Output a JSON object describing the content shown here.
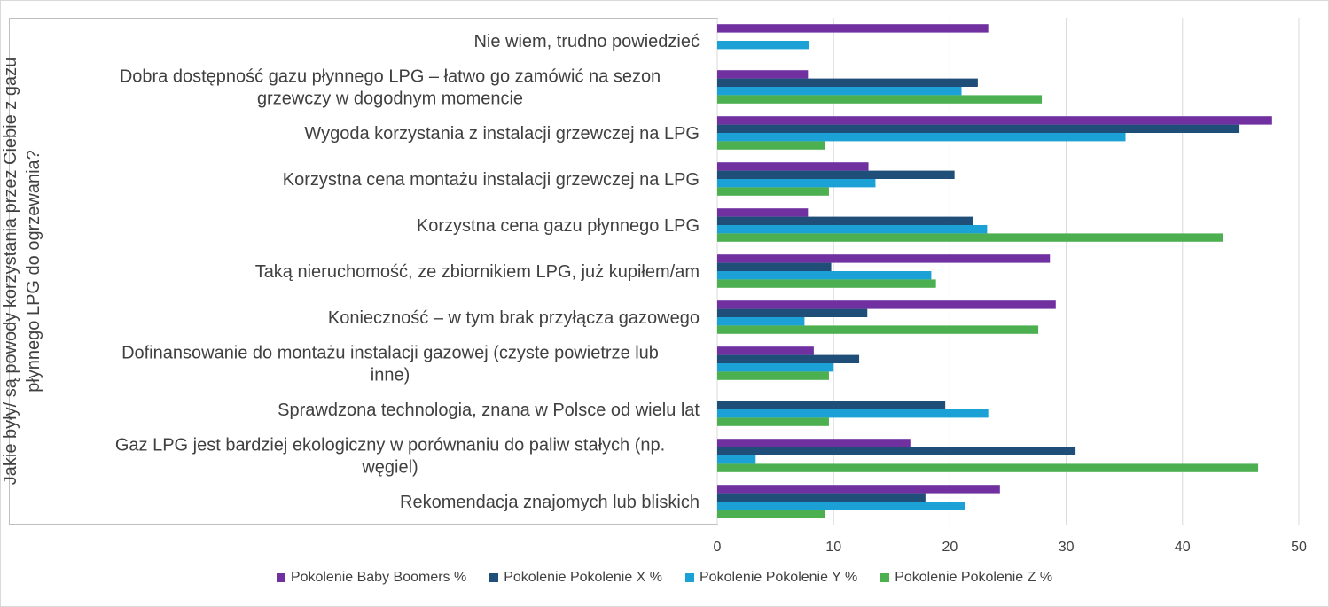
{
  "chart_data": {
    "type": "bar",
    "orientation": "horizontal",
    "ylabel": "Jakie były/ są powody korzystania przez Ciebie z gazu płynnego LPG do ogrzewania?",
    "xlim": [
      0,
      50
    ],
    "xticks": [
      "0",
      "10",
      "20",
      "30",
      "40",
      "50"
    ],
    "grid": true,
    "legend_position": "bottom",
    "categories": [
      "Nie wiem, trudno powiedzieć",
      "Dobra dostępność gazu płynnego LPG – łatwo go zamówić na sezon grzewczy w dogodnym momencie",
      "Wygoda korzystania z instalacji grzewczej na LPG",
      "Korzystna cena montażu instalacji grzewczej na LPG",
      "Korzystna cena gazu płynnego LPG",
      "Taką nieruchomość, ze zbiornikiem LPG, już kupiłem/am",
      "Konieczność – w tym brak przyłącza gazowego",
      "Dofinansowanie do montażu instalacji gazowej (czyste powietrze lub inne)",
      "Sprawdzona technologia, znana w Polsce od wielu lat",
      "Gaz LPG jest bardziej ekologiczny w porównaniu do paliw stałych (np. węgiel)",
      "Rekomendacja znajomych lub bliskich"
    ],
    "category_lines": [
      [
        "Nie wiem, trudno powiedzieć"
      ],
      [
        "Dobra dostępność gazu płynnego LPG – łatwo go zamówić na sezon",
        "grzewczy w dogodnym momencie"
      ],
      [
        "Wygoda korzystania z instalacji grzewczej na LPG"
      ],
      [
        "Korzystna cena montażu instalacji grzewczej na LPG"
      ],
      [
        "Korzystna cena gazu płynnego LPG"
      ],
      [
        "Taką nieruchomość, ze zbiornikiem LPG, już kupiłem/am"
      ],
      [
        "Konieczność – w tym brak przyłącza gazowego"
      ],
      [
        "Dofinansowanie do montażu instalacji gazowej (czyste powietrze lub",
        "inne)"
      ],
      [
        "Sprawdzona technologia, znana w Polsce od wielu lat"
      ],
      [
        "Gaz LPG jest bardziej ekologiczny w porównaniu do paliw stałych (np.",
        "węgiel)"
      ],
      [
        "Rekomendacja znajomych lub bliskich"
      ]
    ],
    "series": [
      {
        "name": "Pokolenie Baby Boomers %",
        "color": "#7030a0",
        "values": [
          23.3,
          7.8,
          47.7,
          13.0,
          7.8,
          28.6,
          29.1,
          8.3,
          0,
          16.6,
          24.3
        ]
      },
      {
        "name": "Pokolenie Pokolenie X %",
        "color": "#1f4e79",
        "values": [
          0,
          22.4,
          44.9,
          20.4,
          22.0,
          9.8,
          12.9,
          12.2,
          19.6,
          30.8,
          17.9
        ]
      },
      {
        "name": "Pokolenie Pokolenie Y %",
        "color": "#1ca1d6",
        "values": [
          7.9,
          21.0,
          35.1,
          13.6,
          23.2,
          18.4,
          7.5,
          10.0,
          23.3,
          3.3,
          21.3
        ]
      },
      {
        "name": "Pokolenie Pokolenie Z %",
        "color": "#4caf50",
        "values": [
          0,
          27.9,
          9.3,
          9.6,
          43.5,
          18.8,
          27.6,
          9.6,
          9.6,
          46.5,
          9.3
        ]
      }
    ]
  }
}
